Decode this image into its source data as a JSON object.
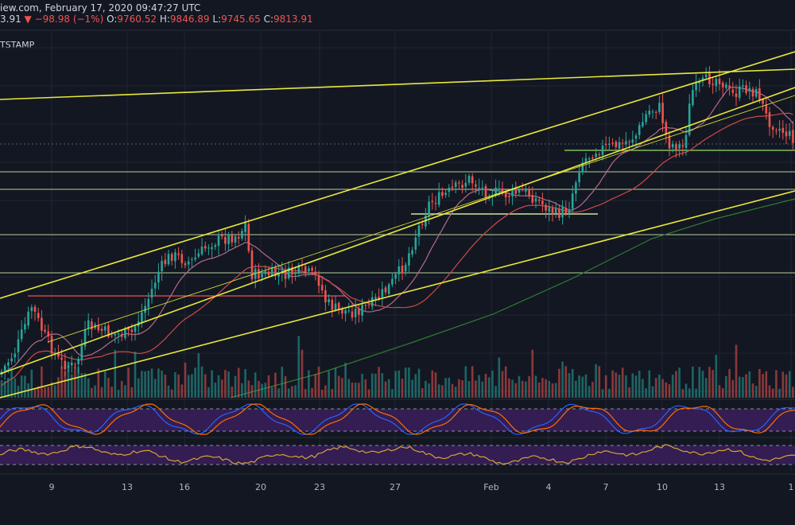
{
  "header": {
    "source_text": "iew.com, February 17, 2020 09:47:27 UTC",
    "last_price": "3.91",
    "change": "▼ −98.98 (−1%)",
    "open_key": "O:",
    "open": "9760.52",
    "high_key": "H:",
    "high": "9846.89",
    "low_key": "L:",
    "low": "9745.65",
    "close_key": "C:",
    "close": "9813.91"
  },
  "symbol_label": "TSTAMP",
  "colors": {
    "background": "#131722",
    "bull": "#26a69a",
    "bear": "#ef5350",
    "trendline": "#e8e93a",
    "support": "#c9e6a5",
    "ma_short": "#b46a8c",
    "ma_mid": "#d04848",
    "ma_long": "#2e7d32",
    "oscillator_bg": "#3a1f5a",
    "stoch_k": "#2962ff",
    "stoch_d": "#ff6d00",
    "rsi": "#d4a537"
  },
  "chart_data": {
    "type": "candlestick",
    "title": "",
    "x_tick_labels": [
      "9",
      "13",
      "16",
      "20",
      "23",
      "27",
      "Feb",
      "4",
      "7",
      "10",
      "13",
      "1"
    ],
    "panels": [
      "price",
      "volume",
      "stochastic-rsi",
      "rsi"
    ],
    "approx_price_range": [
      7600,
      10500
    ],
    "last_candle": {
      "open": 9760.52,
      "high": 9846.89,
      "low": 9745.65,
      "close": 9813.91
    },
    "change_abs": -98.98,
    "change_pct": -1
  }
}
